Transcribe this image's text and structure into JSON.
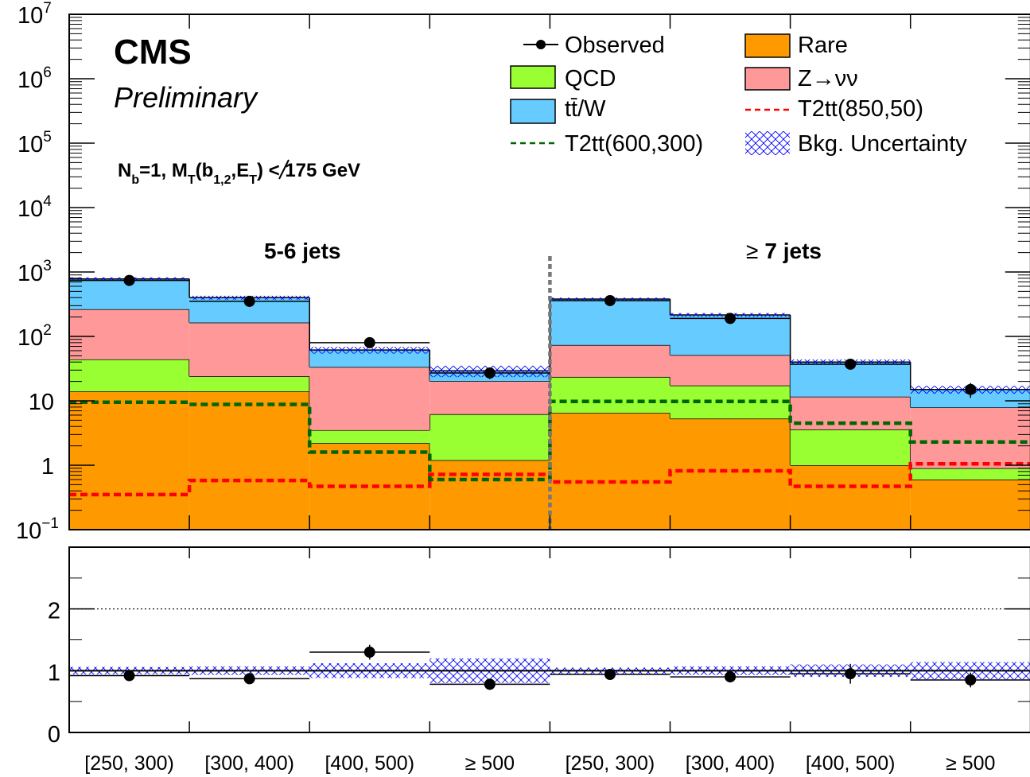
{
  "chart_data": {
    "type": "bar",
    "stacked": true,
    "y_scale": "log",
    "ylim": [
      0.1,
      10000000
    ],
    "labels": {
      "experiment": "CMS",
      "status": "Preliminary",
      "selection": {
        "main": "N",
        "sub1": "b",
        "mid": "=1, M",
        "sub2": "T",
        "open": "(b",
        "sub3": "1,2",
        "comma": ",",
        "met": "E",
        "sub4": "T",
        "close": ") < 175 GeV"
      },
      "regions": [
        {
          "prefix": "",
          "text": "5-6 jets"
        },
        {
          "prefix": "≥",
          "text": "7 jets"
        }
      ],
      "y_ticks_main": [
        "1",
        "10",
        "10",
        "10",
        "10",
        "10",
        "10",
        "10",
        "10"
      ],
      "y_tick_exponents": [
        "7",
        "6",
        "5",
        "4",
        "3",
        "2",
        "−1"
      ],
      "y_ticks_ratio": [
        "0",
        "1",
        "2"
      ]
    },
    "categories": [
      "[250, 300)",
      "[300, 400)",
      "[400, 500)",
      "≥ 500",
      "[250, 300)",
      "[300, 400)",
      "[400, 500)",
      "≥ 500"
    ],
    "series": [
      {
        "name": "Rare",
        "values": [
          14,
          14,
          2.2,
          1.2,
          6.5,
          5.3,
          1.0,
          0.6
        ]
      },
      {
        "name": "QCD",
        "values": [
          30,
          10,
          1.3,
          5,
          17,
          12,
          2.6,
          0.3
        ]
      },
      {
        "name": "Z→νν",
        "values": [
          220,
          140,
          30,
          14,
          50,
          34,
          8,
          7
        ]
      },
      {
        "name": "tt̄/W",
        "values": [
          516,
          236,
          28,
          9,
          307,
          164,
          28.4,
          7.1
        ]
      }
    ],
    "observed": {
      "name": "Observed",
      "values": [
        740,
        350,
        80,
        27,
        360,
        190,
        37,
        15
      ]
    },
    "bkg_total": [
      780,
      400,
      61.5,
      29.2,
      380.5,
      215.3,
      40,
      15
    ],
    "signals": [
      {
        "name": "T2tt(850,50)",
        "values": [
          0.35,
          0.58,
          0.47,
          0.72,
          0.55,
          0.82,
          0.47,
          1.05
        ]
      },
      {
        "name": "T2tt(600,300)",
        "values": [
          9.5,
          8.8,
          1.6,
          0.6,
          9.8,
          9.8,
          4.5,
          2.3
        ]
      }
    ],
    "uncertainty": {
      "name": "Bkg. Uncertainty",
      "relative": [
        0.06,
        0.07,
        0.12,
        0.2,
        0.05,
        0.07,
        0.1,
        0.14
      ]
    },
    "ratio": {
      "values": [
        0.92,
        0.87,
        1.3,
        0.78,
        0.94,
        0.9,
        0.95,
        0.85
      ],
      "errors": [
        0.04,
        0.05,
        0.12,
        0.09,
        0.05,
        0.07,
        0.16,
        0.12
      ],
      "ylim": [
        0,
        3
      ]
    },
    "colors": {
      "Rare": "#ff9900",
      "QCD": "#99ff33",
      "Z→νν": "#ff9999",
      "tt̄/W": "#66ccff",
      "T2tt(850,50)": "#ff0000",
      "T2tt(600,300)": "#006600",
      "uncertainty": "#0000ff",
      "divider": "#777777"
    }
  }
}
